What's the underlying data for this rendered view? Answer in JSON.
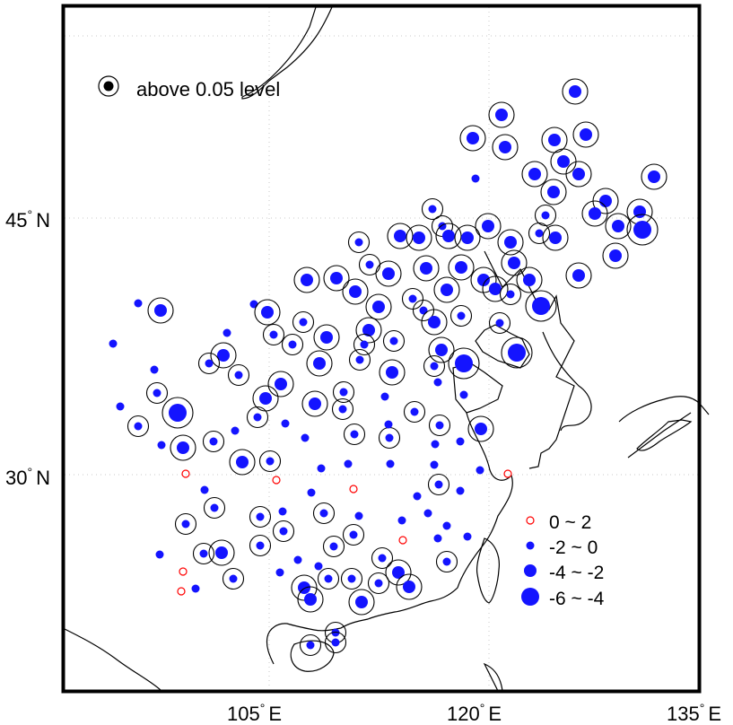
{
  "map": {
    "legend_significance": "above 0.05 level",
    "legend_classes": [
      {
        "label": "0 ~ 2",
        "style": "hollow-red"
      },
      {
        "label": "-2 ~ 0",
        "style": "blue-small"
      },
      {
        "label": "-4 ~ -2",
        "style": "blue-medium"
      },
      {
        "label": "-6 ~ -4",
        "style": "blue-large"
      }
    ],
    "axis_labels": {
      "lat_45": "45",
      "lat_30": "30",
      "lat_suffix": "N",
      "lon_105": "105",
      "lon_120": "120",
      "lon_135": "135",
      "lon_suffix": "E",
      "degree": "°"
    },
    "colors": {
      "station_fill": "#1414ff",
      "positive_outline": "#ff0000",
      "significance_ring": "#000000",
      "coastline": "#000000",
      "gridline": "#c8c8c8"
    }
  }
}
